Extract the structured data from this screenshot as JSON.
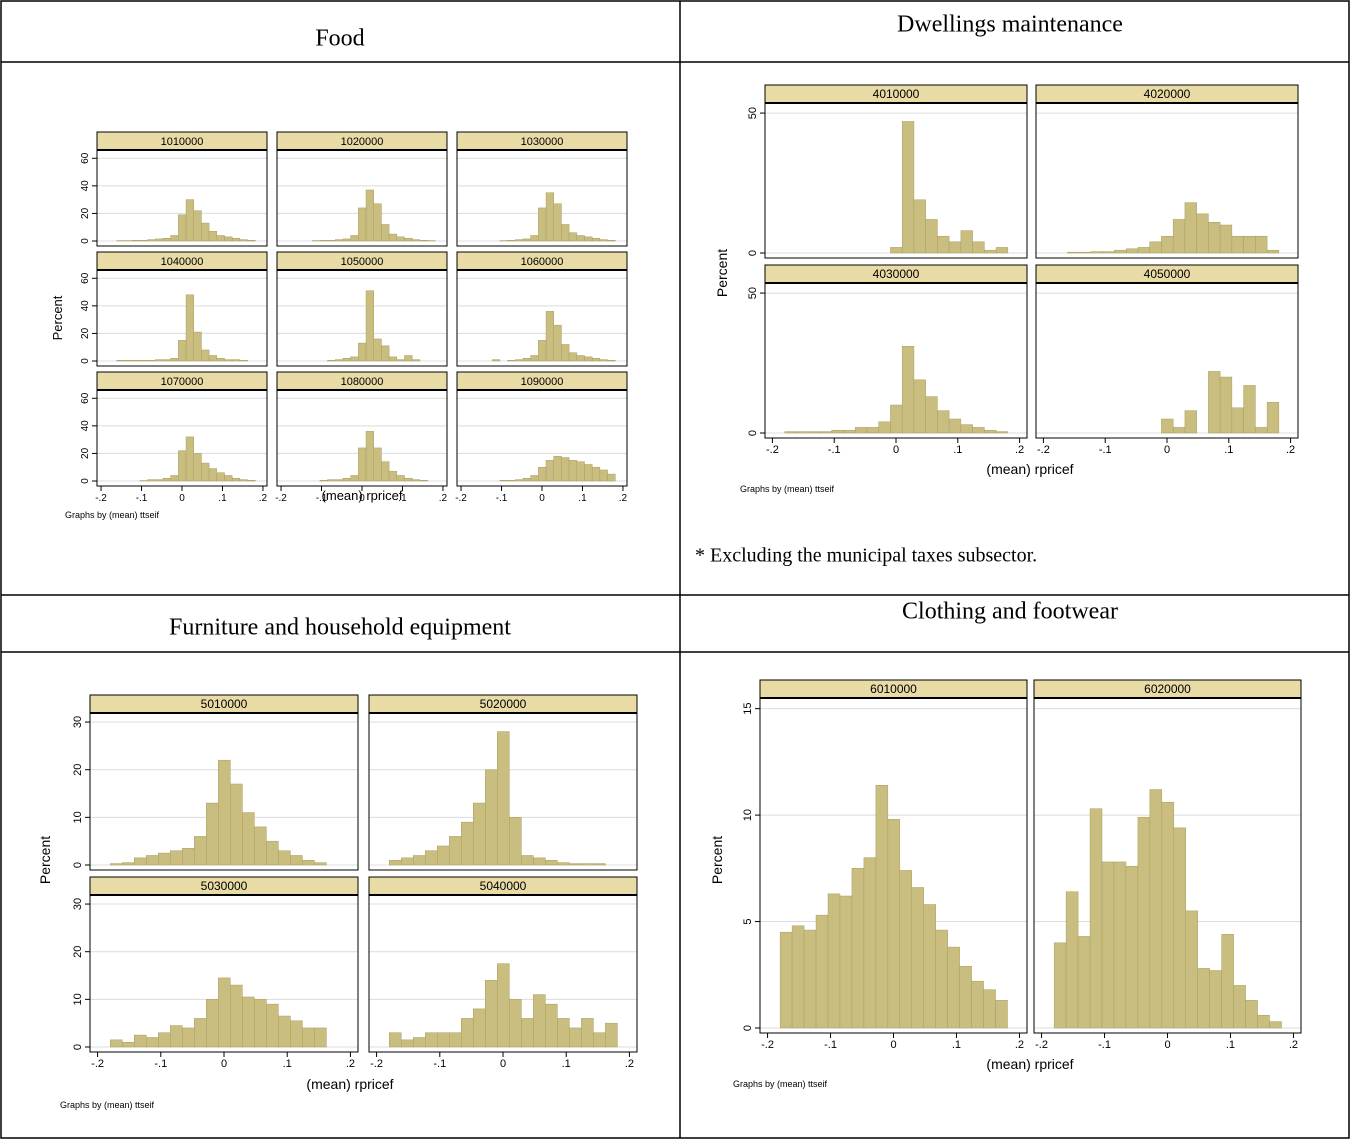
{
  "chart_data": [
    {
      "type": "histogram",
      "title": "Food",
      "ylabel": "Percent",
      "xlabel": "(mean) rpricef",
      "note": "Graphs by (mean) ttseif",
      "color": "#c9be80",
      "strip_color": "#e8dba6",
      "grid": true,
      "bins": [
        -0.18,
        -0.161,
        -0.142,
        -0.123,
        -0.104,
        -0.085,
        -0.066,
        -0.047,
        -0.028,
        -0.009,
        0.01,
        0.029,
        0.048,
        0.067,
        0.086,
        0.105,
        0.124,
        0.143,
        0.162,
        0.181
      ],
      "xlim": [
        -0.21,
        0.21
      ],
      "xticks": [
        {
          "value": -0.2,
          "label": "-.2"
        },
        {
          "value": -0.1,
          "label": "-.1"
        },
        0,
        {
          "value": 0.1,
          "label": ".1"
        },
        {
          "value": 0.2,
          "label": ".2"
        }
      ],
      "ylim": [
        0,
        66
      ],
      "yticks": [
        0,
        20,
        40,
        60
      ],
      "panels": [
        {
          "name": "1010000",
          "values": [
            0,
            0.3,
            0.3,
            0.5,
            0.5,
            1,
            1.5,
            2,
            4,
            19,
            30,
            22,
            13,
            7,
            4,
            3,
            2,
            1,
            0.5
          ]
        },
        {
          "name": "1020000",
          "values": [
            0,
            0,
            0,
            0.3,
            0.5,
            0.5,
            1,
            1.5,
            4,
            24,
            37,
            27,
            12,
            5,
            3,
            2,
            1,
            0.5,
            0.3
          ]
        },
        {
          "name": "1030000",
          "values": [
            0,
            0,
            0,
            0,
            0.3,
            0.5,
            1,
            1.5,
            4,
            24,
            35,
            27,
            12,
            6,
            4,
            3,
            2,
            1,
            0.5
          ]
        },
        {
          "name": "1040000",
          "values": [
            0,
            0.5,
            0.5,
            0.5,
            0.5,
            0.5,
            1,
            1,
            2,
            15,
            48,
            21,
            8,
            4,
            2,
            1,
            1,
            0.5,
            0
          ]
        },
        {
          "name": "1050000",
          "values": [
            0,
            0,
            0,
            0,
            0,
            0.5,
            1,
            2,
            3,
            13,
            51,
            16,
            11,
            3,
            1,
            4,
            1,
            0,
            0
          ]
        },
        {
          "name": "1060000",
          "values": [
            0,
            0,
            0,
            1,
            0,
            0.5,
            1,
            2,
            4,
            15,
            36,
            26,
            12,
            6,
            4,
            3,
            2,
            1,
            0.5
          ]
        },
        {
          "name": "1070000",
          "values": [
            0,
            0,
            0,
            0,
            0.3,
            1,
            1,
            2,
            4,
            22,
            32,
            20,
            13,
            9,
            6,
            4,
            2,
            1,
            0.5
          ]
        },
        {
          "name": "1080000",
          "values": [
            0,
            0,
            0,
            0,
            0.5,
            1,
            1,
            2,
            4,
            24,
            36,
            24,
            14,
            7,
            4,
            2,
            1,
            0.5,
            0
          ]
        },
        {
          "name": "1090000",
          "values": [
            0,
            0,
            0,
            0,
            0.5,
            0.5,
            1,
            2,
            4,
            10,
            15,
            18,
            17,
            15,
            14,
            12,
            10,
            8,
            5
          ]
        }
      ]
    },
    {
      "type": "histogram",
      "title": "Dwellings maintenance",
      "ylabel": "Percent",
      "xlabel": "(mean) rpricef",
      "note": "Graphs by (mean) ttseif",
      "footnote": "* Excluding the municipal taxes subsector.",
      "color": "#c9be80",
      "strip_color": "#e8dba6",
      "grid": true,
      "bins": [
        -0.18,
        -0.161,
        -0.142,
        -0.123,
        -0.104,
        -0.085,
        -0.066,
        -0.047,
        -0.028,
        -0.009,
        0.01,
        0.029,
        0.048,
        0.067,
        0.086,
        0.105,
        0.124,
        0.143,
        0.162,
        0.181
      ],
      "xlim": [
        -0.212,
        0.212
      ],
      "xticks": [
        {
          "value": -0.2,
          "label": "-.2"
        },
        {
          "value": -0.1,
          "label": "-.1"
        },
        0,
        {
          "value": 0.1,
          "label": ".1"
        },
        {
          "value": 0.2,
          "label": ".2"
        }
      ],
      "ylim": [
        0,
        53.6
      ],
      "yticks": [
        0,
        50
      ],
      "panels": [
        {
          "name": "4010000",
          "values": [
            0,
            0,
            0,
            0,
            0,
            0,
            0,
            0,
            0,
            2,
            47,
            19,
            12,
            6,
            4,
            8,
            4,
            1,
            2
          ]
        },
        {
          "name": "4020000",
          "values": [
            0,
            0.3,
            0.3,
            0.5,
            0.5,
            1,
            1.5,
            2,
            4,
            6,
            12,
            18,
            14,
            11,
            10,
            6,
            6,
            6,
            1
          ]
        },
        {
          "name": "4030000",
          "values": [
            0.5,
            0.5,
            0.5,
            0.5,
            1,
            1,
            2,
            2,
            4,
            10,
            31,
            19,
            13,
            8,
            5,
            3,
            2,
            1,
            0.5
          ]
        },
        {
          "name": "4050000",
          "values": [
            0,
            0,
            0,
            0,
            0,
            0,
            0,
            0,
            0,
            5,
            2,
            8,
            0,
            22,
            20,
            9,
            17,
            2,
            11
          ]
        }
      ]
    },
    {
      "type": "histogram",
      "title": "Furniture and household equipment",
      "ylabel": "Percent",
      "xlabel": "(mean) rpricef",
      "note": "Graphs by (mean) ttseif",
      "color": "#c9be80",
      "strip_color": "#e8dba6",
      "grid": true,
      "bins": [
        -0.18,
        -0.161,
        -0.142,
        -0.123,
        -0.104,
        -0.085,
        -0.066,
        -0.047,
        -0.028,
        -0.009,
        0.01,
        0.029,
        0.048,
        0.067,
        0.086,
        0.105,
        0.124,
        0.143,
        0.162,
        0.181
      ],
      "xlim": [
        -0.212,
        0.212
      ],
      "xticks": [
        {
          "value": -0.2,
          "label": "-.2"
        },
        {
          "value": -0.1,
          "label": "-.1"
        },
        0,
        {
          "value": 0.1,
          "label": ".1"
        },
        {
          "value": 0.2,
          "label": ".2"
        }
      ],
      "ylim": [
        0,
        31.9
      ],
      "yticks": [
        0,
        10,
        20,
        30
      ],
      "panels": [
        {
          "name": "5010000",
          "values": [
            0.3,
            0.5,
            1.5,
            2,
            2.5,
            3,
            3.5,
            6,
            13,
            22,
            17,
            11,
            8,
            5,
            3,
            2,
            1,
            0.5,
            0
          ]
        },
        {
          "name": "5020000",
          "values": [
            1,
            1.5,
            2,
            3,
            4,
            6,
            9,
            13,
            20,
            28,
            10,
            2,
            1.5,
            1,
            0.5,
            0.3,
            0.3,
            0.3,
            0
          ]
        },
        {
          "name": "5030000",
          "values": [
            1.5,
            1,
            2.5,
            2,
            3,
            4.5,
            4,
            6,
            10,
            14.5,
            13,
            10.5,
            10,
            9,
            6.5,
            5.5,
            4,
            4,
            0
          ]
        },
        {
          "name": "5040000",
          "values": [
            3,
            1.5,
            2,
            3,
            3,
            3,
            6,
            8,
            14,
            17.5,
            10,
            6,
            11,
            9,
            6,
            4,
            6,
            3,
            5
          ]
        }
      ]
    },
    {
      "type": "histogram",
      "title": "Clothing and footwear",
      "ylabel": "Percent",
      "xlabel": "(mean) rpricef",
      "note": "Graphs by (mean) ttseif",
      "color": "#c9be80",
      "strip_color": "#e8dba6",
      "grid": true,
      "bins": [
        -0.18,
        -0.161,
        -0.142,
        -0.123,
        -0.104,
        -0.085,
        -0.066,
        -0.047,
        -0.028,
        -0.009,
        0.01,
        0.029,
        0.048,
        0.067,
        0.086,
        0.105,
        0.124,
        0.143,
        0.162,
        0.181
      ],
      "xlim": [
        -0.212,
        0.212
      ],
      "xticks": [
        {
          "value": -0.2,
          "label": "-.2"
        },
        {
          "value": -0.1,
          "label": "-.1"
        },
        0,
        {
          "value": 0.1,
          "label": ".1"
        },
        {
          "value": 0.2,
          "label": ".2"
        }
      ],
      "ylim": [
        0,
        15.5
      ],
      "yticks": [
        0,
        5,
        10,
        15
      ],
      "panels": [
        {
          "name": "6010000",
          "values": [
            4.5,
            4.8,
            4.6,
            5.3,
            6.3,
            6.2,
            7.5,
            8.0,
            11.4,
            9.8,
            7.4,
            6.6,
            5.8,
            4.6,
            3.8,
            2.9,
            2.2,
            1.8,
            1.3
          ]
        },
        {
          "name": "6020000",
          "values": [
            4,
            6.4,
            4.3,
            10.3,
            7.8,
            7.8,
            7.6,
            9.9,
            11.2,
            10.6,
            9.4,
            5.5,
            2.8,
            2.7,
            4.4,
            2,
            1.3,
            0.6,
            0.3
          ]
        }
      ]
    }
  ]
}
